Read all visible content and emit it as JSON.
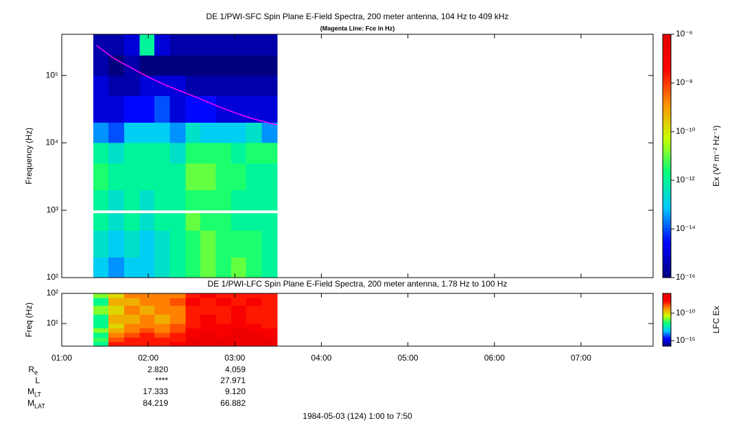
{
  "chart_data": [
    {
      "type": "heatmap",
      "title": "DE 1/PWI-SFC  Spin Plane E-Field Spectra, 200 meter antenna, 104 Hz to 409 kHz",
      "subtitle": "(Magenta Line: Fce in Hz)",
      "y_label": "Frequency (Hz)",
      "xlim": [
        1,
        7.8333
      ],
      "ylim": [
        100,
        409000
      ],
      "y_log": true,
      "yticks": [
        {
          "value": 100,
          "label": "10²"
        },
        {
          "value": 1000,
          "label": "10³"
        },
        {
          "value": 10000,
          "label": "10⁴"
        },
        {
          "value": 100000,
          "label": "10⁵"
        }
      ],
      "x": [
        1.365,
        1.54,
        1.72,
        1.9,
        2.07,
        2.25,
        2.43,
        2.6,
        2.78,
        2.96,
        3.13,
        3.31,
        3.49
      ],
      "y": [
        100,
        200,
        500,
        900,
        1000,
        2000,
        5000,
        10000,
        20000,
        50000,
        100000,
        200000,
        409000
      ],
      "z": [
        [
          1e-13,
          3e-14,
          1e-13,
          1e-13,
          3e-13,
          1e-12,
          3e-12,
          1e-11,
          3e-12,
          1e-11,
          3e-12,
          1e-12
        ],
        [
          3e-13,
          1e-13,
          3e-13,
          1e-13,
          3e-13,
          1e-12,
          3e-12,
          1e-11,
          3e-12,
          3e-12,
          3e-12,
          1e-12
        ],
        [
          1e-12,
          3e-13,
          1e-12,
          3e-13,
          1e-12,
          1e-12,
          1e-11,
          3e-12,
          3e-12,
          1e-12,
          1e-12,
          1e-12
        ],
        [
          null,
          null,
          null,
          null,
          null,
          null,
          null,
          null,
          null,
          null,
          null,
          null
        ],
        [
          1e-12,
          3e-13,
          1e-12,
          3e-13,
          1e-12,
          1e-12,
          3e-12,
          3e-12,
          3e-12,
          1e-12,
          1e-12,
          1e-12
        ],
        [
          3e-12,
          1e-12,
          1e-12,
          1e-12,
          1e-12,
          1e-12,
          1e-11,
          1e-11,
          3e-12,
          3e-12,
          1e-12,
          1e-12
        ],
        [
          1e-12,
          3e-13,
          1e-12,
          1e-12,
          1e-12,
          3e-13,
          3e-12,
          3e-12,
          3e-12,
          1e-12,
          3e-12,
          3e-12
        ],
        [
          3e-14,
          1e-14,
          1e-13,
          1e-13,
          1e-13,
          3e-14,
          3e-13,
          1e-13,
          1e-13,
          1e-13,
          3e-13,
          3e-14
        ],
        [
          1e-15,
          1e-15,
          3e-15,
          3e-15,
          1e-14,
          1e-15,
          3e-15,
          3e-15,
          1e-15,
          1e-15,
          1e-15,
          1e-15
        ],
        [
          1e-15,
          3e-16,
          3e-16,
          1e-15,
          1e-15,
          1e-15,
          3e-16,
          3e-16,
          3e-16,
          3e-16,
          3e-16,
          3e-16
        ],
        [
          3e-16,
          1e-16,
          3e-16,
          1e-16,
          1e-16,
          1e-16,
          1e-16,
          1e-16,
          1e-16,
          1e-16,
          1e-16,
          1e-16
        ],
        [
          3e-16,
          3e-16,
          1e-15,
          1e-12,
          1e-15,
          3e-16,
          3e-16,
          3e-16,
          3e-16,
          3e-16,
          3e-16,
          3e-16
        ]
      ],
      "fce": {
        "color": "#ff00ff",
        "x": [
          1.4,
          1.6,
          1.8,
          2.0,
          2.2,
          2.4,
          2.6,
          2.8,
          3.0,
          3.2,
          3.48
        ],
        "values": [
          280000,
          180000,
          130000,
          95000,
          72000,
          57000,
          45000,
          35000,
          28000,
          23000,
          18500
        ]
      },
      "z_label": "Ex (V² m⁻² Hz⁻¹)",
      "zlim": [
        1e-16,
        1e-06
      ],
      "zticks": [
        {
          "value": 1e-06,
          "label": "10⁻⁶"
        },
        {
          "value": 1e-08,
          "label": "10⁻⁸"
        },
        {
          "value": 1e-10,
          "label": "10⁻¹⁰"
        },
        {
          "value": 1e-12,
          "label": "10⁻¹²"
        },
        {
          "value": 1e-14,
          "label": "10⁻¹⁴"
        },
        {
          "value": 1e-16,
          "label": "10⁻¹⁶"
        }
      ],
      "colormap": [
        "#00007f",
        "#0000ff",
        "#00c8ff",
        "#00ff80",
        "#c8ff00",
        "#ff9000",
        "#ff0000",
        "#e00000"
      ]
    },
    {
      "type": "heatmap",
      "title": "DE 1/PWI-LFC  Spin Plane E-Field Spectra, 200 meter antenna, 1.78 Hz to 100 Hz",
      "y_label": "Freq (Hz)",
      "xlim": [
        1,
        7.8333
      ],
      "xticks": [
        {
          "value": 1,
          "label": "01:00"
        },
        {
          "value": 2,
          "label": "02:00"
        },
        {
          "value": 3,
          "label": "03:00"
        },
        {
          "value": 4,
          "label": "04:00"
        },
        {
          "value": 5,
          "label": "05:00"
        },
        {
          "value": 6,
          "label": "06:00"
        },
        {
          "value": 7,
          "label": "07:00"
        }
      ],
      "ylim": [
        1.78,
        100
      ],
      "y_log": true,
      "yticks": [
        {
          "value": 10,
          "label": "10¹"
        },
        {
          "value": 100,
          "label": "10²"
        }
      ],
      "x": [
        1.365,
        1.54,
        1.72,
        1.9,
        2.07,
        2.25,
        2.43,
        2.6,
        2.78,
        2.96,
        3.13,
        3.31,
        3.49
      ],
      "y": [
        1.78,
        2.5,
        3.5,
        5,
        7,
        10,
        20,
        40,
        70,
        100
      ],
      "z": [
        [
          1e-12,
          1e-08,
          1e-08,
          1e-08,
          1e-08,
          3e-08,
          1e-07,
          1e-07,
          1e-07,
          1e-07,
          1e-07,
          1e-07
        ],
        [
          3e-12,
          3e-09,
          1e-08,
          1e-08,
          1e-08,
          1e-08,
          1e-07,
          1e-07,
          1e-07,
          1e-07,
          1e-07,
          1e-07
        ],
        [
          1e-12,
          1e-09,
          3e-09,
          1e-08,
          3e-09,
          1e-08,
          3e-08,
          1e-07,
          3e-08,
          1e-07,
          1e-07,
          3e-08
        ],
        [
          1e-11,
          3e-10,
          1e-09,
          3e-09,
          1e-09,
          3e-09,
          3e-08,
          3e-08,
          3e-08,
          1e-07,
          3e-08,
          3e-08
        ],
        [
          1e-12,
          1e-10,
          1e-09,
          1e-09,
          1e-09,
          3e-09,
          1e-08,
          3e-08,
          3e-08,
          3e-08,
          3e-08,
          1e-08
        ],
        [
          1e-12,
          3e-10,
          3e-10,
          1e-09,
          3e-10,
          1e-09,
          1e-08,
          3e-08,
          1e-08,
          3e-08,
          1e-08,
          1e-08
        ],
        [
          1e-11,
          1e-10,
          1e-09,
          3e-10,
          1e-09,
          1e-09,
          1e-08,
          1e-08,
          1e-08,
          3e-08,
          1e-08,
          1e-08
        ],
        [
          1e-12,
          3e-10,
          3e-10,
          1e-09,
          1e-09,
          3e-09,
          3e-08,
          1e-08,
          3e-08,
          1e-08,
          3e-08,
          1e-08
        ],
        [
          1e-11,
          1e-10,
          1e-09,
          1e-09,
          1e-09,
          1e-09,
          1e-08,
          3e-08,
          1e-08,
          1e-08,
          1e-08,
          1e-08
        ]
      ],
      "z_label": "LFC Ex",
      "zlim": [
        1e-16,
        4e-07
      ],
      "zticks": [
        {
          "value": 1e-10,
          "label": "10⁻¹⁰"
        },
        {
          "value": 1e-15,
          "label": "10⁻¹⁵"
        }
      ],
      "colormap": [
        "#00007f",
        "#0000ff",
        "#00c8ff",
        "#00ff80",
        "#c8ff00",
        "#ff9000",
        "#ff0000",
        "#e00000"
      ]
    }
  ],
  "ephemeris": {
    "rows": [
      {
        "label": "R",
        "sub": "e",
        "values": [
          "2.820",
          "4.059"
        ]
      },
      {
        "label": "L",
        "values": [
          "****",
          "27.971"
        ]
      },
      {
        "label": "M",
        "sub": "LT",
        "values": [
          "17.333",
          "9.120"
        ]
      },
      {
        "label": "M",
        "sub": "LAT",
        "values": [
          "84.219",
          "66.882"
        ]
      }
    ]
  },
  "footer": "1984-05-03 (124) 1:00 to 7:50"
}
